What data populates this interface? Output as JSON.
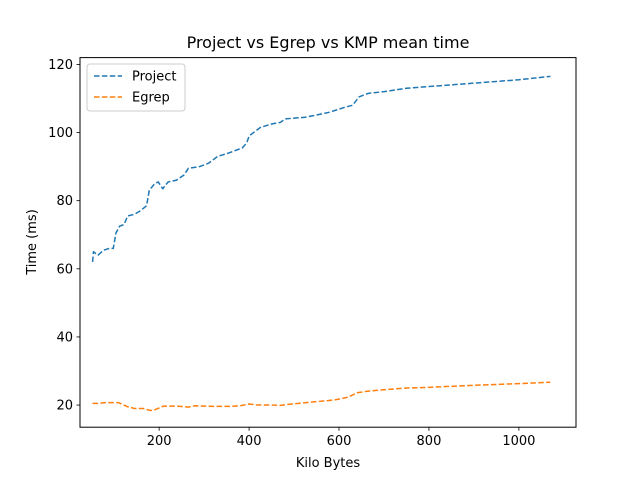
{
  "chart_data": {
    "type": "line",
    "title": "Project vs Egrep vs KMP mean time",
    "xlabel": "Kilo Bytes",
    "ylabel": "Time (ms)",
    "xlim": [
      24,
      1127
    ],
    "ylim": [
      13.5,
      122
    ],
    "xticks": [
      200,
      400,
      600,
      800,
      1000
    ],
    "yticks": [
      20,
      40,
      60,
      80,
      100,
      120
    ],
    "grid": false,
    "legend_position": "upper-left",
    "series": [
      {
        "name": "Project",
        "color": "#1f77b4",
        "linestyle": "dashed",
        "points": [
          [
            52,
            62
          ],
          [
            54,
            65
          ],
          [
            64,
            64
          ],
          [
            77,
            65.5
          ],
          [
            90,
            66
          ],
          [
            98,
            66
          ],
          [
            104,
            70.5
          ],
          [
            112,
            72.5
          ],
          [
            122,
            73
          ],
          [
            130,
            75.5
          ],
          [
            145,
            76
          ],
          [
            158,
            77
          ],
          [
            172,
            78.5
          ],
          [
            178,
            83
          ],
          [
            190,
            85
          ],
          [
            198,
            85.5
          ],
          [
            208,
            83.5
          ],
          [
            220,
            85.5
          ],
          [
            238,
            86
          ],
          [
            255,
            87.5
          ],
          [
            265,
            89.5
          ],
          [
            290,
            90
          ],
          [
            310,
            91
          ],
          [
            330,
            93
          ],
          [
            355,
            94
          ],
          [
            385,
            95.5
          ],
          [
            395,
            97
          ],
          [
            400,
            99
          ],
          [
            415,
            100.5
          ],
          [
            425,
            101.5
          ],
          [
            450,
            102.5
          ],
          [
            470,
            103
          ],
          [
            480,
            104
          ],
          [
            525,
            104.5
          ],
          [
            545,
            105
          ],
          [
            580,
            106
          ],
          [
            615,
            107.5
          ],
          [
            630,
            108
          ],
          [
            645,
            110.5
          ],
          [
            665,
            111.5
          ],
          [
            700,
            112
          ],
          [
            750,
            113
          ],
          [
            800,
            113.5
          ],
          [
            850,
            114
          ],
          [
            900,
            114.5
          ],
          [
            950,
            115
          ],
          [
            1000,
            115.5
          ],
          [
            1070,
            116.5
          ]
        ]
      },
      {
        "name": "Egrep",
        "color": "#ff7f0e",
        "linestyle": "dashed",
        "points": [
          [
            52,
            20.5
          ],
          [
            64,
            20.5
          ],
          [
            80,
            20.7
          ],
          [
            110,
            20.7
          ],
          [
            130,
            19.5
          ],
          [
            145,
            19
          ],
          [
            165,
            19
          ],
          [
            180,
            18.4
          ],
          [
            190,
            18.6
          ],
          [
            210,
            19.7
          ],
          [
            240,
            19.7
          ],
          [
            265,
            19.4
          ],
          [
            280,
            19.8
          ],
          [
            320,
            19.6
          ],
          [
            355,
            19.6
          ],
          [
            380,
            19.8
          ],
          [
            400,
            20.3
          ],
          [
            420,
            20
          ],
          [
            450,
            20
          ],
          [
            470,
            19.9
          ],
          [
            480,
            20.1
          ],
          [
            510,
            20.5
          ],
          [
            550,
            21
          ],
          [
            590,
            21.5
          ],
          [
            620,
            22.3
          ],
          [
            640,
            23.6
          ],
          [
            660,
            24
          ],
          [
            700,
            24.5
          ],
          [
            750,
            25
          ],
          [
            800,
            25.2
          ],
          [
            900,
            25.8
          ],
          [
            1000,
            26.3
          ],
          [
            1070,
            26.7
          ]
        ]
      }
    ]
  }
}
